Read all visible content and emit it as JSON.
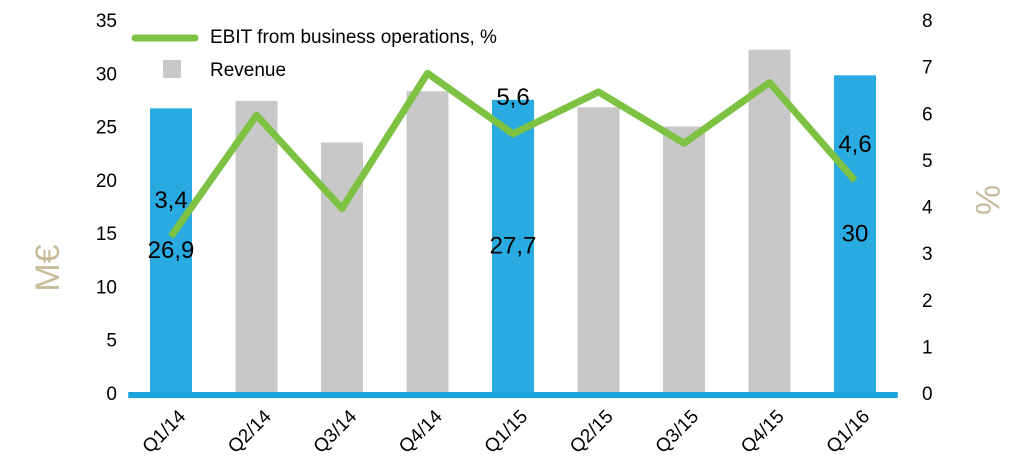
{
  "chart_data": {
    "type": "bar_line",
    "categories": [
      "Q1/14",
      "Q2/14",
      "Q3/14",
      "Q4/14",
      "Q1/15",
      "Q2/15",
      "Q3/15",
      "Q4/15",
      "Q1/16"
    ],
    "series": [
      {
        "name": "Revenue",
        "color": "#c8c8c8",
        "colors": [
          "#29abe2",
          "#c8c8c8",
          "#c8c8c8",
          "#c8c8c8",
          "#29abe2",
          "#c8c8c8",
          "#c8c8c8",
          "#c8c8c8",
          "#29abe2"
        ],
        "values": [
          26.9,
          27.6,
          23.7,
          28.5,
          27.7,
          27.0,
          25.2,
          32.4,
          30
        ],
        "value_labels": [
          "26,9",
          null,
          null,
          null,
          "27,7",
          null,
          null,
          null,
          "30"
        ]
      },
      {
        "name": "EBIT from business operations, %",
        "color": "#7dc242",
        "axis": "y2",
        "values": [
          3.4,
          6.0,
          4.0,
          6.9,
          5.6,
          6.5,
          5.4,
          6.7,
          4.6
        ],
        "value_labels": [
          "3,4",
          null,
          null,
          null,
          "5,6",
          null,
          null,
          null,
          "4,6"
        ]
      }
    ],
    "ylabel": "M€",
    "y2label": "%",
    "ylim": [
      0,
      35
    ],
    "yticks": [
      0,
      5,
      10,
      15,
      20,
      25,
      30,
      35
    ],
    "y2lim": [
      0,
      8
    ],
    "y2ticks": [
      0,
      1,
      2,
      3,
      4,
      5,
      6,
      7,
      8
    ],
    "axis_color": "#1aa3dc"
  }
}
